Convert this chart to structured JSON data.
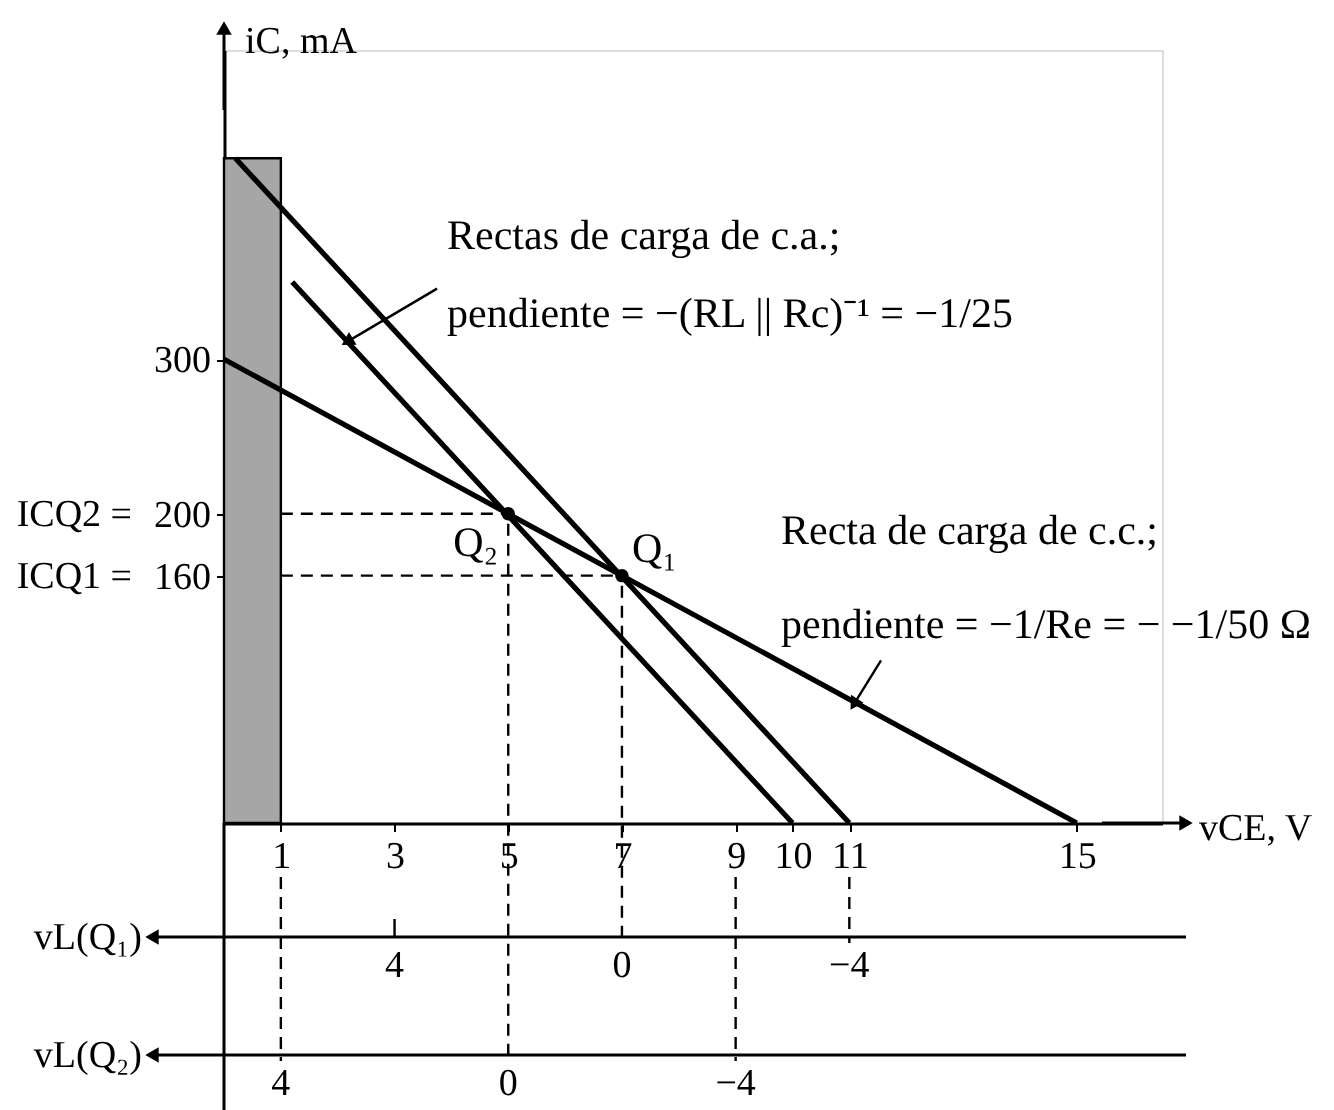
{
  "chart_data": {
    "type": "line",
    "xlabel": "vCE, V",
    "ylabel": "iC, mA",
    "xlim": [
      0,
      16.5
    ],
    "xticks": [
      1,
      3,
      5,
      7,
      9,
      10,
      11,
      15
    ],
    "ylim": [
      0,
      500
    ],
    "yticks": [
      300,
      200,
      160
    ],
    "grid": false,
    "series": [
      {
        "type": "area",
        "x": [
          0,
          1
        ],
        "values": [
          430,
          430
        ],
        "color": "#a6a6a6"
      },
      {
        "x": [
          0,
          15
        ],
        "values": [
          300,
          0
        ],
        "color": "#000000"
      },
      {
        "x": [
          0.2,
          11
        ],
        "values": [
          430,
          0
        ],
        "color": "#000000"
      },
      {
        "x": [
          1.2,
          10
        ],
        "values": [
          350,
          0
        ],
        "color": "#000000"
      },
      {
        "x": [
          1,
          5
        ],
        "values": [
          200,
          200
        ],
        "color": "#000000",
        "line_style": "dashed"
      },
      {
        "x": [
          1,
          7
        ],
        "values": [
          160,
          160
        ],
        "color": "#000000",
        "line_style": "dashed"
      },
      {
        "type": "scatter",
        "x": [
          5,
          7
        ],
        "values": [
          200,
          160
        ],
        "color": "#000000",
        "marker": "circle"
      }
    ],
    "annotations": [
      {
        "text": "Rectas de carga de c.a.;\npendiente = −(RL || Rc)⁻¹ = −1/25",
        "x": 2.2,
        "y": 312
      },
      {
        "text": "Recta de carga de c.c.;\npendiente = −1/Re = − −1/50 Ω",
        "x": 11.1,
        "y": 78
      },
      {
        "text": "Q₂",
        "x": 5,
        "y": 200
      },
      {
        "text": "Q₁",
        "x": 7,
        "y": 160
      },
      {
        "text": "ICQ2 =",
        "x": 0,
        "y": 200
      },
      {
        "text": "ICQ1 =",
        "x": 0,
        "y": 160
      },
      "vL(Q₁)",
      "4",
      {
        "text": "0",
        "x": 7,
        "y": 160
      },
      {
        "text": "−4",
        "x": 11
      },
      "vL(Q₂)",
      {
        "text": "4",
        "x": 1
      },
      {
        "text": "0",
        "x": 5,
        "y": 200
      },
      "−4"
    ]
  }
}
